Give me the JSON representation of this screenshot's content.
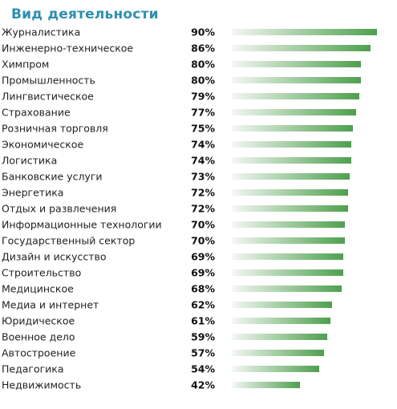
{
  "chart_data": {
    "type": "bar",
    "orientation": "horizontal",
    "title": "Вид деятельности",
    "categories": [
      "Журналистика",
      "Инженерно-техническое",
      "Химпром",
      "Промышленность",
      "Лингвистическое",
      "Страхование",
      "Розничная торговля",
      "Экономическое",
      "Логистика",
      "Банковские услуги",
      "Энергетика",
      "Отдых и развлечения",
      "Информационные технологии",
      "Государственный сектор",
      "Дизайн и искусство",
      "Строительство",
      "Медицинское",
      "Медиа и интернет",
      "Юридическое",
      "Военное дело",
      "Автостроение",
      "Педагогика",
      "Недвижимость"
    ],
    "values": [
      90,
      86,
      80,
      80,
      79,
      77,
      75,
      74,
      74,
      73,
      72,
      72,
      70,
      70,
      69,
      69,
      68,
      62,
      61,
      59,
      57,
      54,
      42
    ],
    "value_labels": [
      "90%",
      "86%",
      "80%",
      "80%",
      "79%",
      "77%",
      "75%",
      "74%",
      "74%",
      "73%",
      "72%",
      "72%",
      "70%",
      "70%",
      "69%",
      "69%",
      "68%",
      "62%",
      "61%",
      "59%",
      "57%",
      "54%",
      "42%"
    ],
    "unit": "%",
    "bar_color_start": "#f2f7f2",
    "bar_color_end": "#4ea04e",
    "grid": false,
    "legend": "none"
  }
}
